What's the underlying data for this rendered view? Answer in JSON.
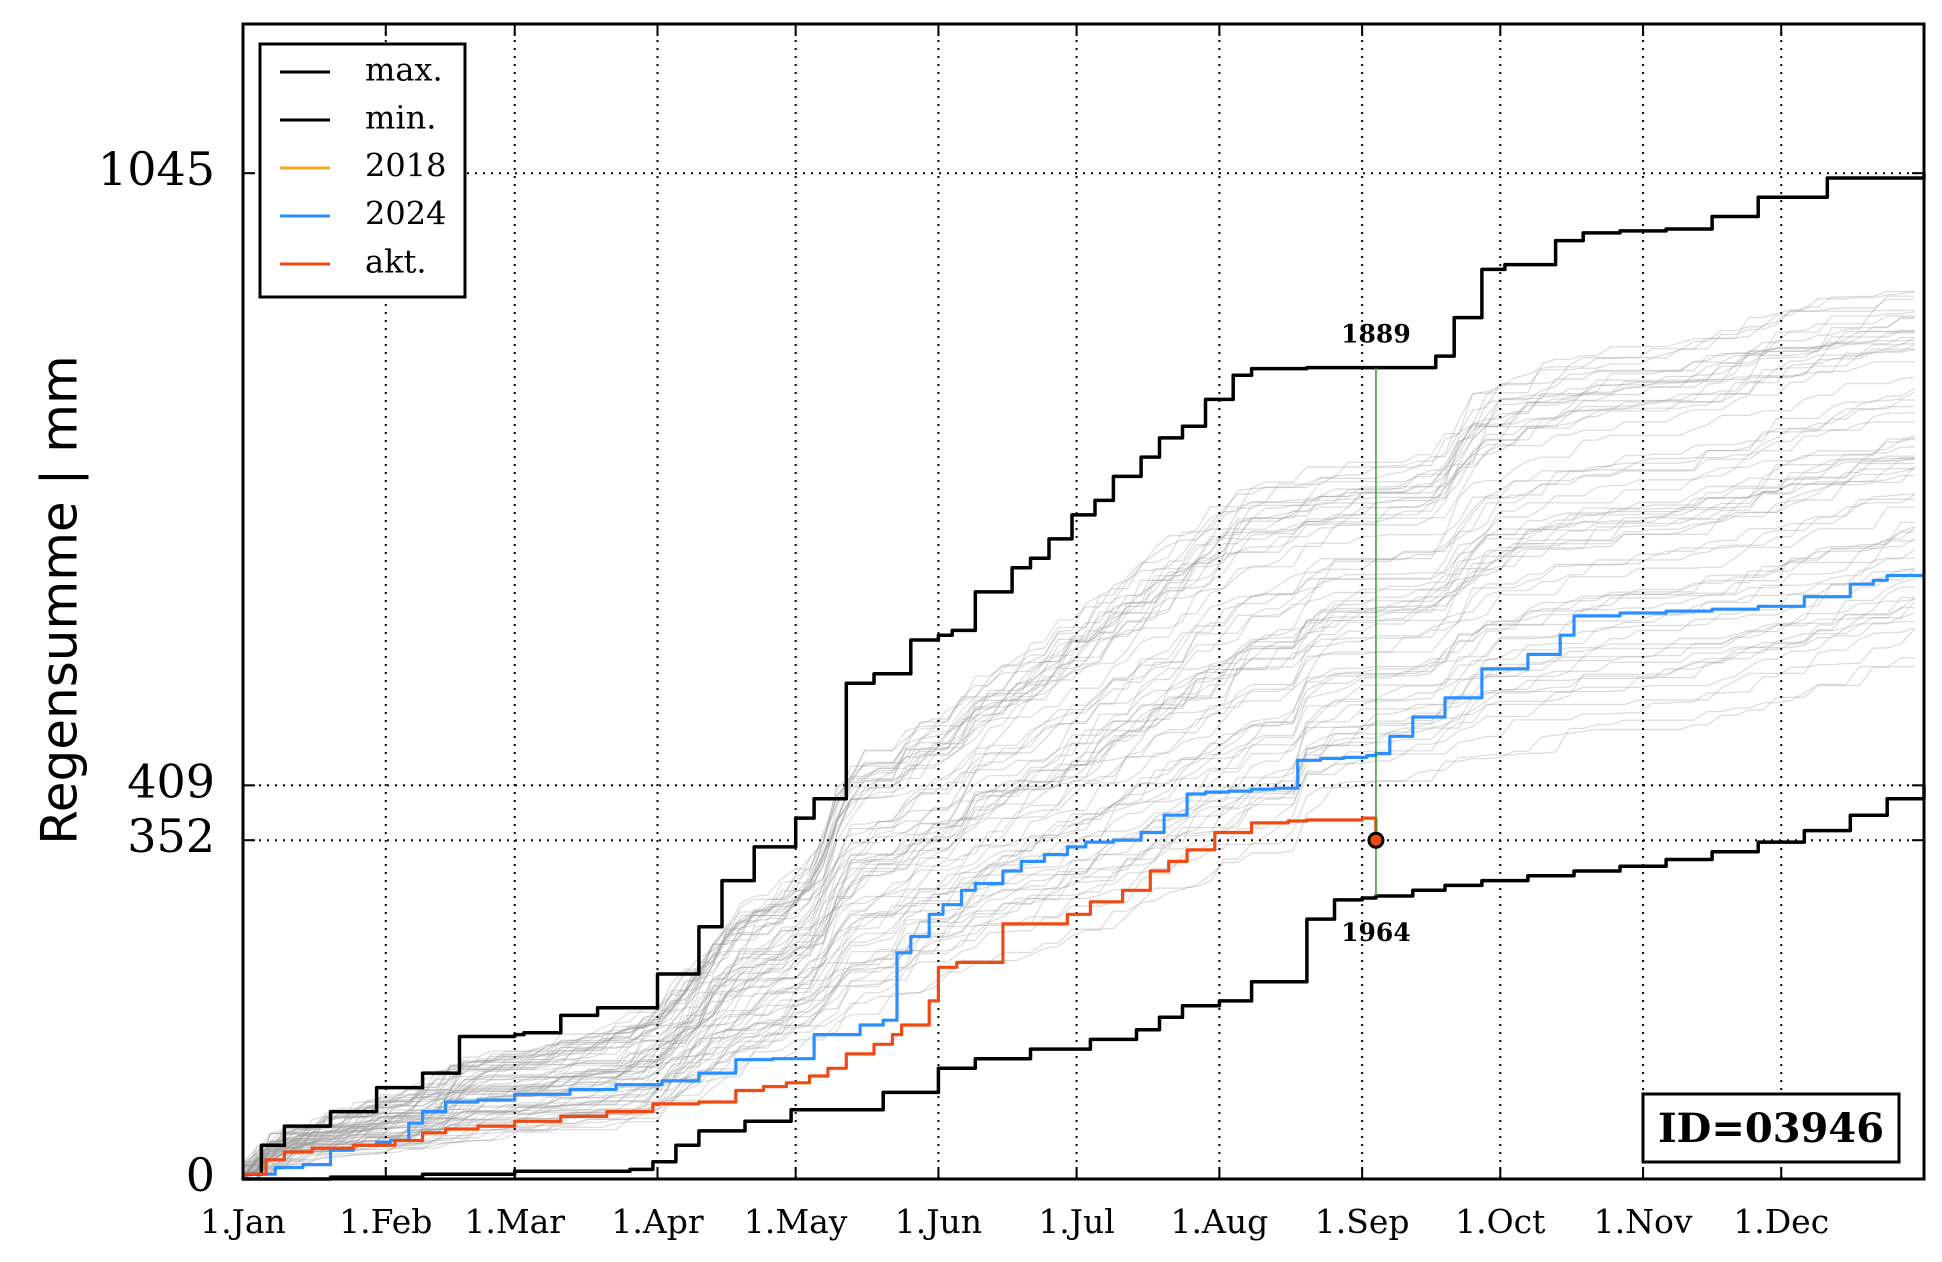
{
  "chart_data": {
    "type": "line",
    "title": "",
    "xlabel": "",
    "ylabel": "Regensumme | mm",
    "x_ticks": [
      "1.Jan",
      "1.Feb",
      "1.Mar",
      "1.Apr",
      "1.May",
      "1.Jun",
      "1.Jul",
      "1.Aug",
      "1.Sep",
      "1.Oct",
      "1.Nov",
      "1.Dec"
    ],
    "x_tick_days": [
      1,
      32,
      60,
      91,
      121,
      152,
      182,
      213,
      244,
      274,
      305,
      335
    ],
    "x_range_days": [
      1,
      366
    ],
    "y_ticks": [
      0,
      352,
      409,
      1045
    ],
    "ylim": [
      0,
      1200
    ],
    "grid": true,
    "legend_position": "top-left",
    "colors": {
      "max": "#000000",
      "min": "#000000",
      "2018": "#f5a623",
      "2024": "#2b8fff",
      "akt": "#f04a12",
      "background_years": "#999999",
      "marker_line": "#2ca02c"
    },
    "legend": [
      "max.",
      "min.",
      "2018",
      "2024",
      "akt."
    ],
    "current_marker": {
      "day": 247,
      "value": 352
    },
    "annotations": [
      {
        "label": "1889",
        "day": 247,
        "value": 843
      },
      {
        "label": "1964",
        "day": 247,
        "value": 294
      }
    ],
    "id_label": "ID=03946",
    "series": [
      {
        "name": "max.",
        "key": "max",
        "days": [
          1,
          5,
          10,
          20,
          30,
          32,
          40,
          48,
          52,
          60,
          62,
          70,
          78,
          91,
          100,
          105,
          112,
          116,
          121,
          125,
          132,
          138,
          142,
          146,
          152,
          155,
          160,
          168,
          172,
          176,
          181,
          186,
          190,
          196,
          200,
          205,
          210,
          216,
          220,
          226,
          232,
          236,
          244,
          247,
          250,
          260,
          264,
          270,
          275,
          286,
          292,
          300,
          310,
          320,
          330,
          345,
          366
        ],
        "values": [
          5,
          35,
          55,
          70,
          95,
          95,
          110,
          148,
          148,
          150,
          152,
          170,
          178,
          213,
          262,
          310,
          345,
          345,
          375,
          395,
          515,
          525,
          525,
          560,
          565,
          570,
          610,
          635,
          645,
          665,
          690,
          705,
          730,
          750,
          770,
          782,
          810,
          835,
          842,
          842,
          843,
          843,
          843,
          843,
          843,
          855,
          895,
          945,
          950,
          975,
          983,
          985,
          987,
          1000,
          1020,
          1040,
          1045
        ]
      },
      {
        "name": "min.",
        "key": "min",
        "days": [
          1,
          20,
          40,
          60,
          85,
          90,
          95,
          100,
          110,
          120,
          140,
          152,
          160,
          172,
          185,
          195,
          200,
          205,
          213,
          220,
          228,
          232,
          238,
          244,
          247,
          255,
          262,
          270,
          280,
          290,
          300,
          310,
          320,
          330,
          340,
          350,
          358,
          366
        ],
        "values": [
          0,
          2,
          5,
          8,
          10,
          18,
          35,
          50,
          60,
          72,
          90,
          115,
          125,
          135,
          145,
          155,
          168,
          180,
          185,
          205,
          205,
          270,
          290,
          292,
          294,
          300,
          305,
          310,
          315,
          320,
          325,
          332,
          340,
          350,
          362,
          378,
          395,
          409
        ]
      },
      {
        "name": "2018",
        "key": "2018",
        "days": [],
        "values": []
      },
      {
        "name": "2024",
        "key": "2024",
        "days": [
          1,
          8,
          14,
          20,
          25,
          30,
          33,
          37,
          40,
          45,
          52,
          60,
          72,
          82,
          92,
          100,
          108,
          116,
          125,
          135,
          140,
          143,
          146,
          150,
          153,
          157,
          160,
          166,
          170,
          175,
          180,
          184,
          190,
          196,
          201,
          206,
          210,
          215,
          220,
          225,
          230,
          235,
          240,
          245,
          247,
          250,
          255,
          262,
          270,
          280,
          287,
          290,
          300,
          310,
          320,
          330,
          340,
          350,
          355,
          358,
          366
        ],
        "values": [
          5,
          12,
          15,
          30,
          35,
          38,
          40,
          58,
          70,
          80,
          82,
          88,
          93,
          98,
          102,
          110,
          124,
          125,
          150,
          160,
          165,
          235,
          252,
          275,
          285,
          300,
          307,
          320,
          330,
          337,
          345,
          350,
          352,
          360,
          378,
          400,
          402,
          403,
          405,
          406,
          435,
          437,
          438,
          440,
          442,
          460,
          480,
          500,
          530,
          545,
          565,
          585,
          588,
          590,
          592,
          595,
          605,
          618,
          622,
          627,
          630
        ]
      },
      {
        "name": "akt.",
        "key": "akt",
        "days": [
          1,
          6,
          10,
          16,
          25,
          34,
          40,
          45,
          52,
          60,
          70,
          80,
          90,
          100,
          108,
          114,
          119,
          124,
          128,
          132,
          138,
          142,
          144,
          150,
          152,
          156,
          166,
          180,
          185,
          192,
          198,
          202,
          206,
          212,
          220,
          228,
          232,
          240,
          244,
          247
        ],
        "values": [
          5,
          20,
          28,
          32,
          35,
          40,
          48,
          52,
          55,
          60,
          65,
          70,
          78,
          80,
          92,
          96,
          100,
          107,
          115,
          130,
          140,
          150,
          160,
          185,
          220,
          225,
          265,
          275,
          288,
          300,
          320,
          330,
          342,
          360,
          370,
          372,
          373,
          373,
          375,
          352
        ]
      }
    ]
  }
}
